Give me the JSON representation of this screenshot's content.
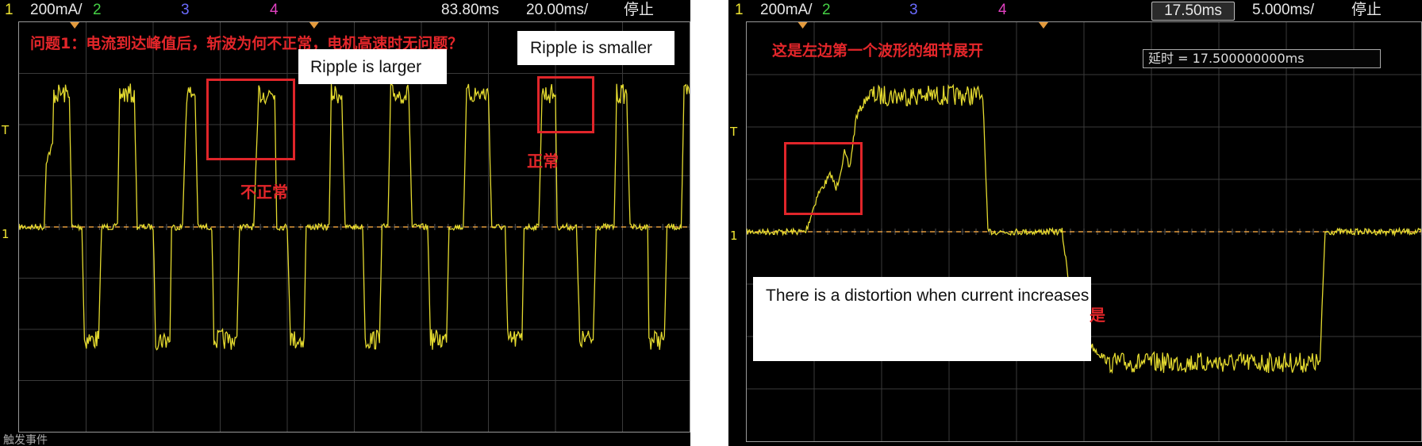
{
  "left_scope": {
    "channels": [
      {
        "num": "1",
        "scale": "200mA/",
        "color": "#f0e632"
      },
      {
        "num": "2",
        "color": "#45d145"
      },
      {
        "num": "3",
        "color": "#6b6bff"
      },
      {
        "num": "4",
        "color": "#e040c0"
      }
    ],
    "time_delay": "83.80ms",
    "time_scale": "20.00ms/",
    "run_state": "停止",
    "question": "问题1：电流到达峰值后，斩波为何不正常，电机高速时无问题？",
    "callout_larger": "Ripple is larger",
    "callout_smaller": "Ripple is smaller",
    "label_abnormal": "不正常",
    "label_normal": "正常",
    "trigger_label": "T",
    "ground_label": "1",
    "bottom_label": "触发事件"
  },
  "right_scope": {
    "channels": [
      {
        "num": "1",
        "scale": "200mA/",
        "color": "#f0e632"
      },
      {
        "num": "2",
        "color": "#45d145"
      },
      {
        "num": "3",
        "color": "#6b6bff"
      },
      {
        "num": "4",
        "color": "#e040c0"
      }
    ],
    "time_delay": "17.50ms",
    "time_scale": "5.000ms/",
    "run_state": "停止",
    "title": "这是左边第一个波形的细节展开",
    "delay_readout": "延时 = 17.500000000ms",
    "callout_distortion": "There is a distortion when current increases",
    "label_fragment": "是",
    "trigger_label": "T",
    "ground_label": "1"
  },
  "chart_data": [
    {
      "type": "line",
      "title": "",
      "xlabel": "",
      "ylabel": "",
      "series": [
        {
          "color": "#f0e632",
          "x_ms": [
            0,
            6,
            6.5,
            8,
            8.3,
            12,
            12.6,
            15,
            15.6,
            19,
            19.7,
            23.5,
            24,
            27.5,
            28.2,
            32,
            32.6,
            36,
            36.4,
            39,
            40,
            42,
            42.7,
            46,
            46.5,
            52,
            52.6,
            56,
            57.2,
            61,
            61.5,
            64,
            64.8,
            68,
            68.5,
            74,
            74.5,
            77,
            77.8,
            82,
            82.6,
            86,
            86.6,
            88,
            88.7,
            93,
            93.8,
            97.5,
            98.2,
            102,
            102.6,
            106,
            106.8,
            112,
            112.8,
            116,
            116.6,
            120,
            120.5,
            124,
            124.8,
            128,
            128.4,
            133,
            133.8,
            137,
            137.7,
            142,
            142.6,
            145,
            145.8,
            150,
            150.3,
            154,
            154.6,
            158,
            158.7,
            160
          ],
          "y_div": [
            0,
            0,
            1.3,
            1.6,
            2.6,
            2.6,
            0,
            0,
            -2.2,
            -2.2,
            0,
            0,
            2.6,
            2.6,
            0,
            0,
            -2.2,
            -2.2,
            0,
            0,
            2.6,
            2.6,
            0,
            0,
            -2.2,
            -2.2,
            0,
            0,
            2.6,
            2.6,
            0,
            0,
            -2.2,
            -2.2,
            0,
            0,
            2.6,
            2.6,
            0,
            0,
            -2.2,
            -2.2,
            0,
            0,
            2.6,
            2.6,
            0,
            0,
            -2.2,
            -2.2,
            0,
            0,
            2.6,
            2.6,
            0,
            0,
            -2.2,
            -2.2,
            0,
            0,
            2.6,
            2.6,
            0,
            0,
            -2.2,
            -2.2,
            0,
            0,
            2.6,
            2.6,
            0,
            0,
            -2.2,
            -2.2,
            0,
            0,
            2.6,
            2.6
          ]
        }
      ],
      "ground_level_div": 0,
      "x_scale": "20.00ms/",
      "y_scale": "200mA/",
      "grid": true
    },
    {
      "type": "line",
      "title": "",
      "xlabel": "",
      "ylabel": "",
      "series": [
        {
          "color": "#f0e632",
          "x_ms": [
            0,
            3.5,
            4.2,
            5,
            5.3,
            5.8,
            6.1,
            6.5,
            7.2,
            14,
            14.3,
            18.7,
            19.2,
            20.5,
            21.5,
            34,
            34.3,
            40
          ],
          "y_div": [
            0,
            0,
            0.7,
            1.1,
            0.8,
            1.5,
            1.2,
            2.2,
            2.6,
            2.6,
            0,
            0,
            -1.2,
            -2.2,
            -2.5,
            -2.5,
            0,
            0
          ]
        }
      ],
      "ground_level_div": 0,
      "x_scale": "5.000ms/",
      "y_scale": "200mA/",
      "grid": true
    }
  ]
}
